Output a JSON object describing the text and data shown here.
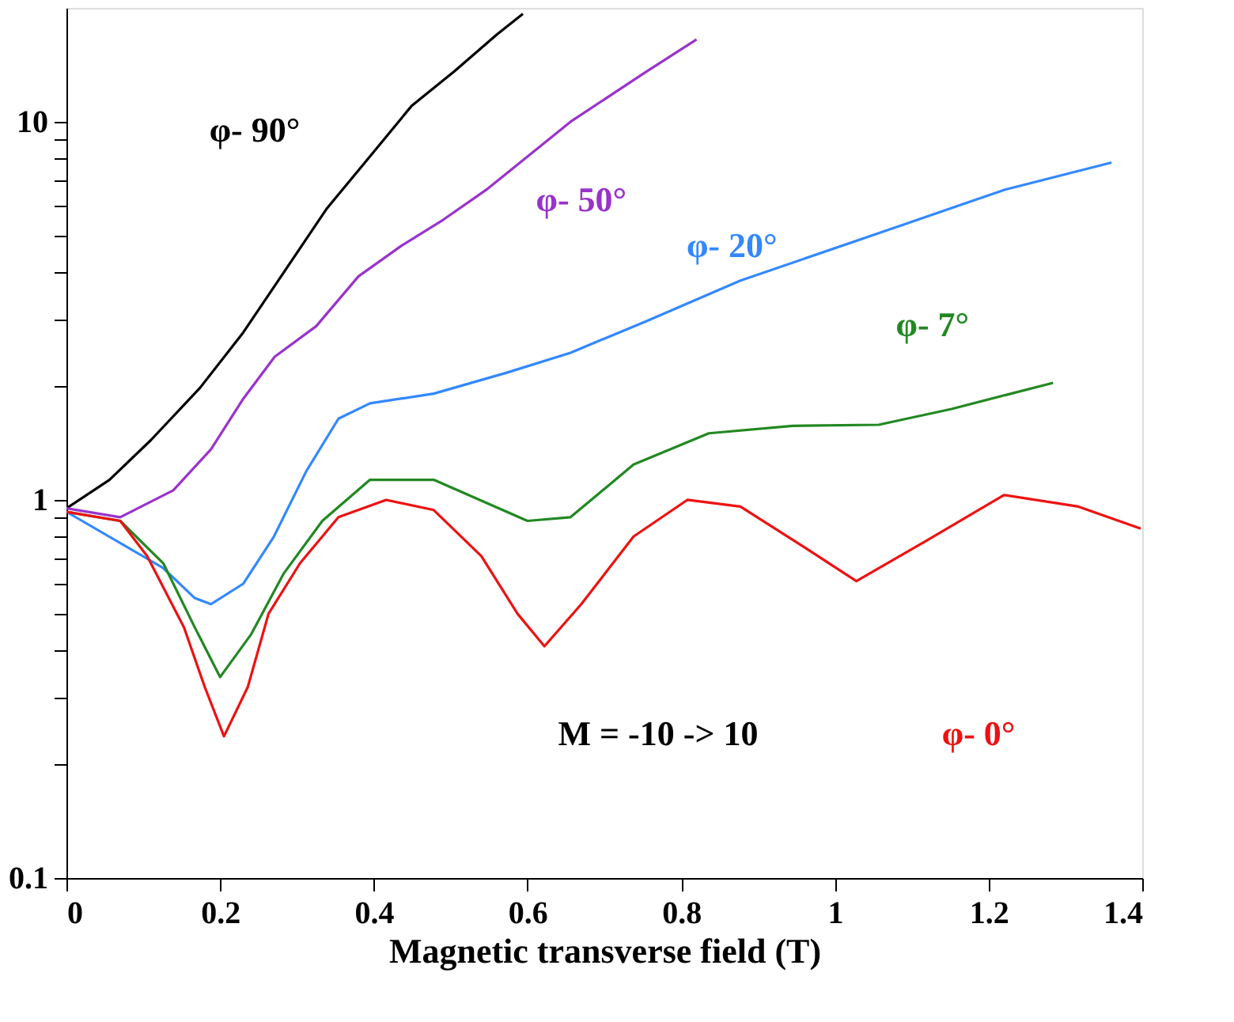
{
  "chart_data": {
    "type": "line",
    "xlabel": "Magnetic transverse field (T)",
    "xlim": [
      0,
      1.4
    ],
    "xticks": [
      0,
      0.2,
      0.4,
      0.6,
      0.8,
      1,
      1.2,
      1.4
    ],
    "ylim": [
      0.1,
      20
    ],
    "log": "y",
    "grid": false,
    "legend": false,
    "yticks": [
      0.1,
      {
        "value": 0.2,
        "label": null
      },
      {
        "value": 0.3,
        "label": null
      },
      {
        "value": 0.4,
        "label": null
      },
      {
        "value": 0.5,
        "label": null
      },
      {
        "value": 0.6,
        "label": null
      },
      {
        "value": 0.7,
        "label": null
      },
      {
        "value": 0.8,
        "label": null
      },
      {
        "value": 0.9,
        "label": null
      },
      1,
      {
        "value": 2,
        "label": null
      },
      {
        "value": 3,
        "label": null
      },
      {
        "value": 4,
        "label": null
      },
      {
        "value": 5,
        "label": null
      },
      {
        "value": 6,
        "label": null
      },
      {
        "value": 7,
        "label": null
      },
      {
        "value": 8,
        "label": null
      },
      {
        "value": 9,
        "label": null
      },
      10
    ],
    "annotations": [
      "M = -10  ->  10"
    ],
    "series": [
      {
        "name": "φ- 90°",
        "color": "#000000",
        "x": [
          0,
          0.056,
          0.11,
          0.174,
          0.23,
          0.283,
          0.339,
          0.395,
          0.449,
          0.505,
          0.56,
          0.594
        ],
        "values": [
          0.95,
          1.13,
          1.44,
          1.98,
          2.77,
          4.0,
          5.9,
          8.1,
          11,
          13.6,
          17,
          19.3
        ]
      },
      {
        "name": "φ- 50°",
        "color": "#9933cc",
        "x": [
          0,
          0.07,
          0.139,
          0.188,
          0.23,
          0.271,
          0.325,
          0.38,
          0.436,
          0.49,
          0.546,
          0.656,
          0.753,
          0.82
        ],
        "values": [
          0.95,
          0.9,
          1.06,
          1.36,
          1.85,
          2.39,
          2.88,
          3.9,
          4.7,
          5.5,
          6.6,
          10,
          13.5,
          16.5
        ]
      },
      {
        "name": "φ- 20°",
        "color": "#3388ff",
        "x": [
          0,
          0.126,
          0.167,
          0.188,
          0.23,
          0.27,
          0.312,
          0.354,
          0.395,
          0.478,
          0.573,
          0.656,
          0.753,
          0.877,
          1.084,
          1.22,
          1.36
        ],
        "values": [
          0.93,
          0.66,
          0.55,
          0.53,
          0.6,
          0.8,
          1.19,
          1.64,
          1.8,
          1.91,
          2.17,
          2.45,
          2.96,
          3.8,
          5.3,
          6.6,
          7.8
        ]
      },
      {
        "name": "φ- 7°",
        "color": "#228822",
        "x": [
          0,
          0.07,
          0.126,
          0.167,
          0.2,
          0.24,
          0.283,
          0.333,
          0.395,
          0.478,
          0.6,
          0.656,
          0.738,
          0.836,
          0.945,
          1.057,
          1.152,
          1.284
        ],
        "values": [
          0.93,
          0.88,
          0.68,
          0.46,
          0.34,
          0.44,
          0.64,
          0.88,
          1.13,
          1.13,
          0.88,
          0.9,
          1.24,
          1.5,
          1.57,
          1.58,
          1.74,
          2.04
        ]
      },
      {
        "name": "φ- 0°",
        "color": "#ee1111",
        "x": [
          0,
          0.07,
          0.105,
          0.153,
          0.18,
          0.205,
          0.236,
          0.263,
          0.304,
          0.354,
          0.416,
          0.478,
          0.54,
          0.587,
          0.622,
          0.67,
          0.738,
          0.808,
          0.877,
          0.96,
          1.028,
          1.119,
          1.22,
          1.317,
          1.398
        ],
        "values": [
          0.93,
          0.88,
          0.71,
          0.46,
          0.32,
          0.237,
          0.32,
          0.5,
          0.68,
          0.9,
          1.0,
          0.94,
          0.71,
          0.5,
          0.41,
          0.53,
          0.8,
          1.0,
          0.96,
          0.75,
          0.61,
          0.78,
          1.03,
          0.96,
          0.84
        ]
      }
    ]
  }
}
